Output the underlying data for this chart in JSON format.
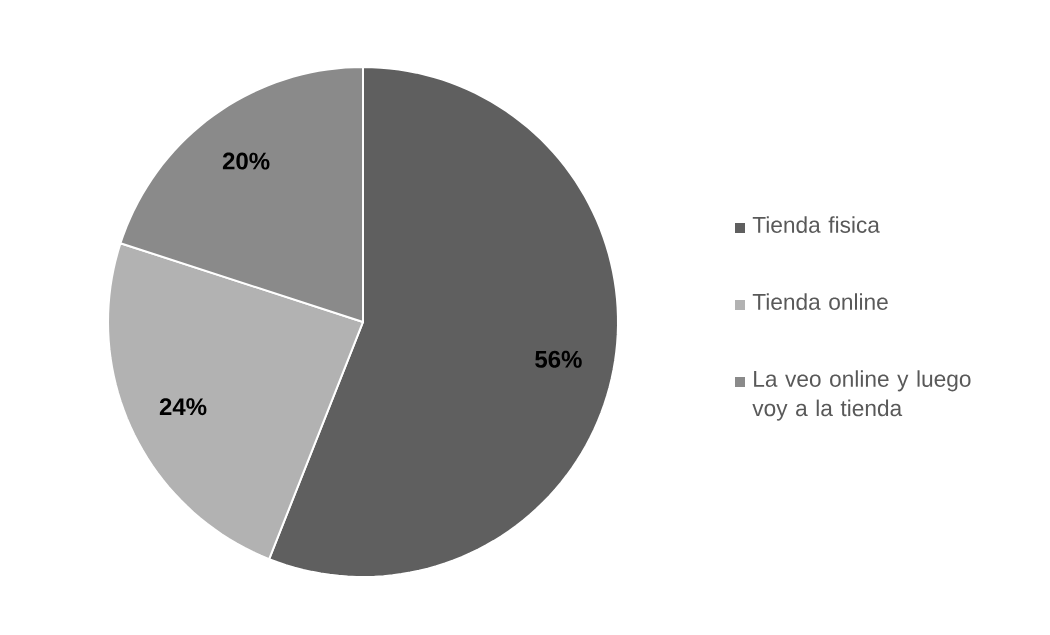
{
  "chart_data": {
    "type": "pie",
    "categories": [
      "Tienda fisica",
      "Tienda online",
      "La veo online y luego voy a la tienda"
    ],
    "values": [
      56,
      24,
      20
    ],
    "colors": [
      "#5f5f5f",
      "#b2b2b2",
      "#8a8a8a"
    ],
    "value_labels": [
      "56%",
      "24%",
      "20%"
    ],
    "legend": "right"
  }
}
